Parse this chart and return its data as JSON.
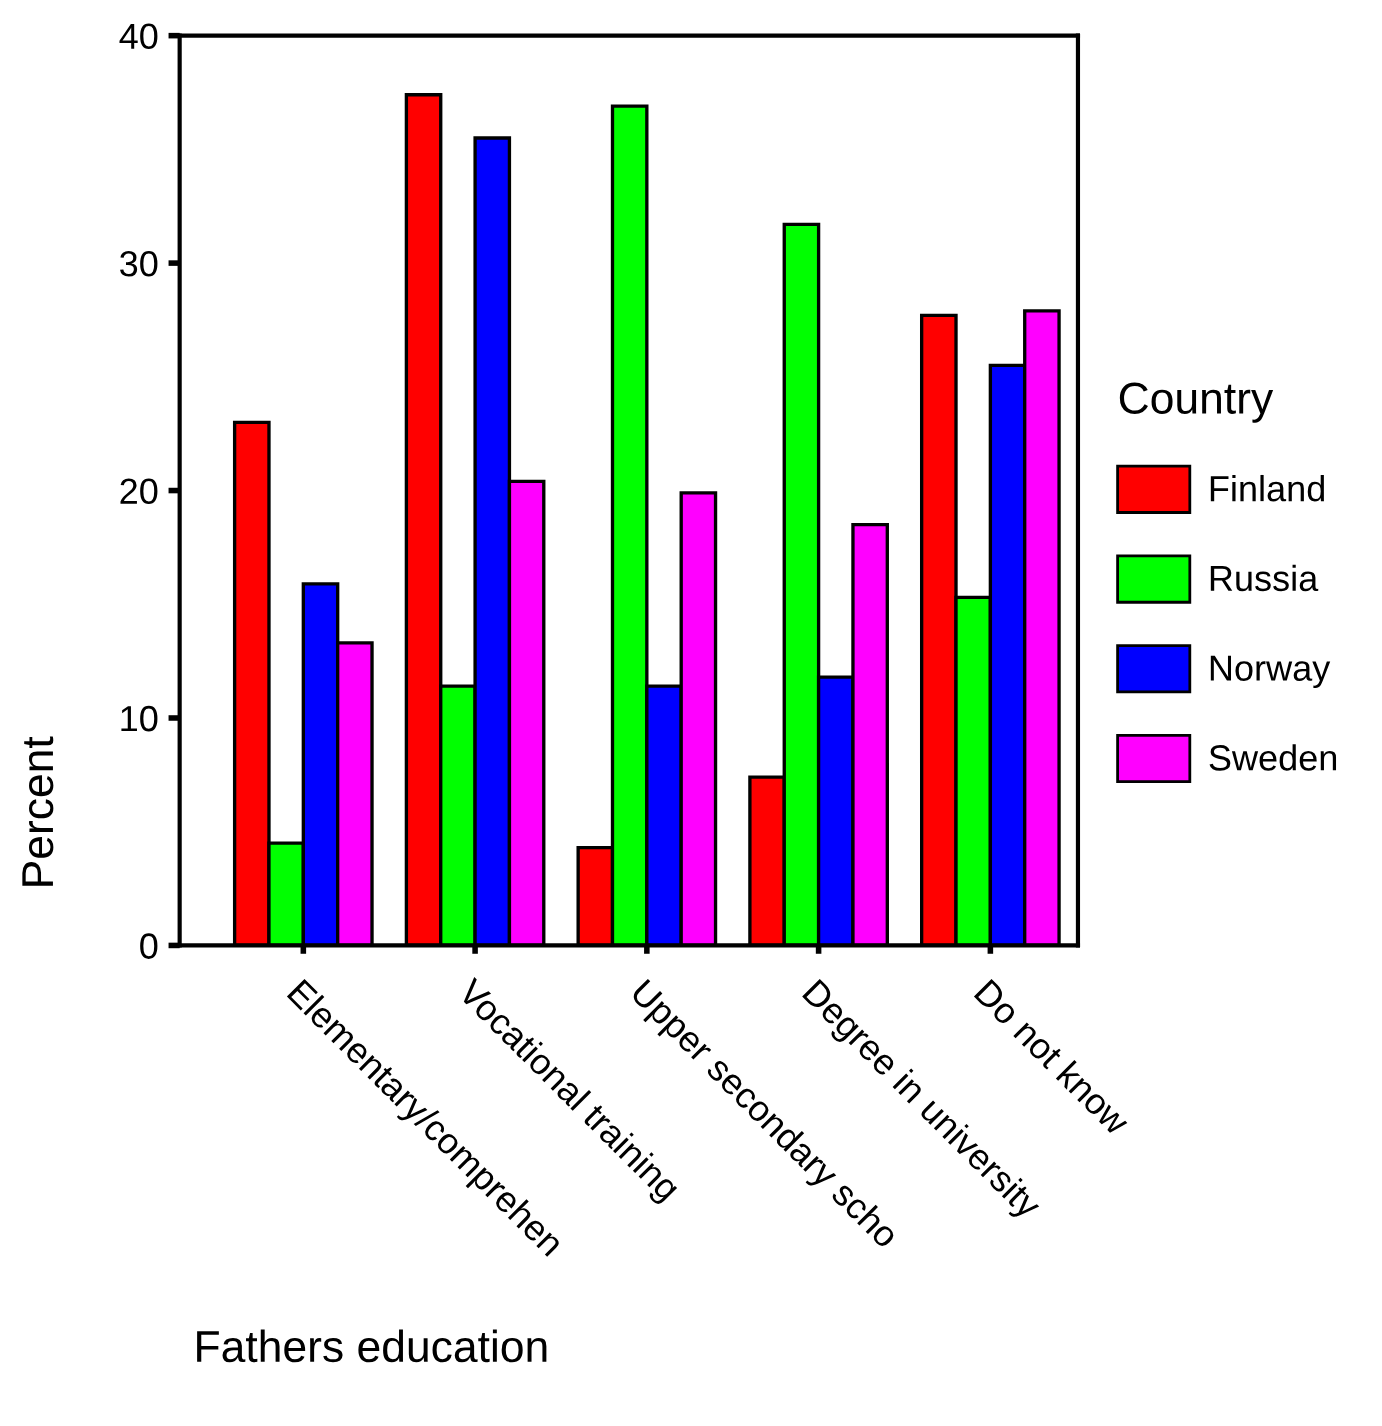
{
  "chart_data": {
    "type": "bar",
    "xlabel": "Fathers education",
    "ylabel": "Percent",
    "legend_title": "Country",
    "categories": [
      "Elementary/comprehen",
      "Vocational training",
      "Upper secondary scho",
      "Degree in university",
      "Do not know"
    ],
    "series": [
      {
        "name": "Finland",
        "color": "#ff0000",
        "values": [
          23.0,
          37.4,
          4.3,
          7.4,
          27.7
        ]
      },
      {
        "name": "Russia",
        "color": "#00ff00",
        "values": [
          4.5,
          11.4,
          36.9,
          31.7,
          15.3
        ]
      },
      {
        "name": "Norway",
        "color": "#0000ff",
        "values": [
          15.9,
          35.5,
          11.4,
          11.8,
          25.5
        ]
      },
      {
        "name": "Sweden",
        "color": "#ff00ff",
        "values": [
          13.3,
          20.4,
          19.9,
          18.5,
          27.9
        ]
      }
    ],
    "ylim": [
      0,
      40
    ],
    "yticks": [
      0,
      10,
      20,
      30,
      40
    ],
    "grid": false,
    "legend": "right"
  }
}
